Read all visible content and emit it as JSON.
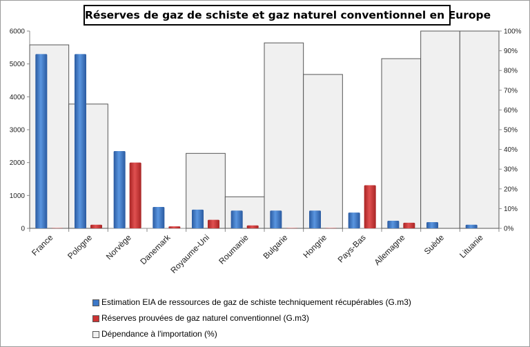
{
  "chart_data": {
    "type": "bar",
    "title": "Réserves de gaz de schiste et gaz naturel conventionnel en Europe",
    "categories": [
      "France",
      "Pologne",
      "Norvège",
      "Danemark",
      "Royaume-Uni",
      "Roumanie",
      "Bulgarie",
      "Hongrie",
      "Pays-Bas",
      "Allemagne",
      "Suède",
      "Lituanie"
    ],
    "series": [
      {
        "name": "Estimation EIA de ressources de gaz de schiste techniquement récupérables (G.m3)",
        "axis": "left",
        "color": "#3c78c8",
        "values": [
          5300,
          5300,
          2350,
          650,
          570,
          540,
          540,
          540,
          480,
          230,
          190,
          110
        ]
      },
      {
        "name": "Réserves prouvées de gaz naturel conventionnel (G.m3)",
        "axis": "left",
        "color": "#cc3333",
        "values": [
          10,
          110,
          2000,
          60,
          260,
          90,
          10,
          10,
          1310,
          170,
          0,
          0
        ]
      },
      {
        "name": "Dépendance à l'importation (%)",
        "axis": "right",
        "color": "#f0f0f0",
        "values": [
          93,
          63,
          null,
          null,
          38,
          16,
          94,
          78,
          null,
          86,
          100,
          100
        ]
      }
    ],
    "y_left": {
      "min": 0,
      "max": 6000,
      "ticks": [
        "0",
        "1000",
        "2000",
        "3000",
        "4000",
        "5000",
        "6000"
      ]
    },
    "y_right": {
      "min": 0,
      "max": 100,
      "ticks": [
        "0%",
        "10%",
        "20%",
        "30%",
        "40%",
        "50%",
        "60%",
        "70%",
        "80%",
        "90%",
        "100%"
      ]
    },
    "xlabel": "",
    "ylabel": "",
    "legend_position": "bottom",
    "grid": false
  }
}
